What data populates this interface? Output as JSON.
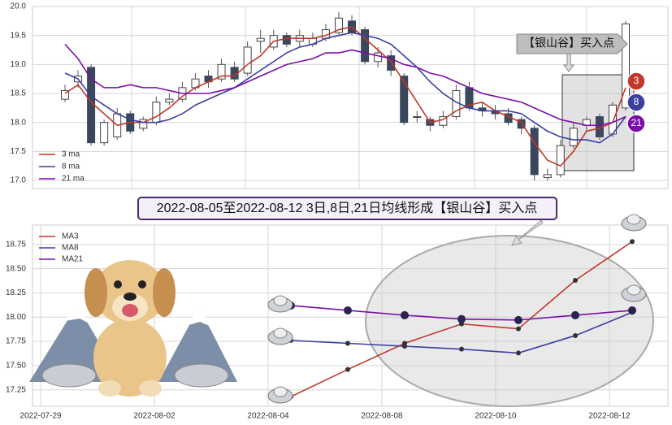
{
  "chart_data": [
    {
      "type": "candlestick",
      "open": [
        18.4,
        18.7,
        18.95,
        17.65,
        17.75,
        18.15,
        17.9,
        18.0,
        18.35,
        18.4,
        18.6,
        18.8,
        18.75,
        18.95,
        18.85,
        19.4,
        19.3,
        19.5,
        19.4,
        19.35,
        19.45,
        19.55,
        19.75,
        19.6,
        19.05,
        19.15,
        18.8,
        18.1,
        18.05,
        17.95,
        18.1,
        18.6,
        18.25,
        18.2,
        18.15,
        18.05,
        17.9,
        17.05,
        17.1,
        17.6,
        17.95,
        18.1,
        17.8,
        18.25
      ],
      "high": [
        18.65,
        18.9,
        19.0,
        18.05,
        18.25,
        18.2,
        18.1,
        18.45,
        18.5,
        18.7,
        18.85,
        18.9,
        19.1,
        19.05,
        19.4,
        19.6,
        19.6,
        19.55,
        19.6,
        19.55,
        19.7,
        19.9,
        19.85,
        19.65,
        19.3,
        19.25,
        18.85,
        18.2,
        18.1,
        18.2,
        18.65,
        18.7,
        18.35,
        18.3,
        18.25,
        18.1,
        17.95,
        17.2,
        17.7,
        18.0,
        18.1,
        18.15,
        18.35,
        19.75
      ],
      "low": [
        18.35,
        18.6,
        17.6,
        17.6,
        17.7,
        17.8,
        17.85,
        17.95,
        18.3,
        18.35,
        18.55,
        18.6,
        18.7,
        18.7,
        18.8,
        19.2,
        19.25,
        19.3,
        19.3,
        19.3,
        19.4,
        19.5,
        19.5,
        19.0,
        18.95,
        18.8,
        17.95,
        18.0,
        17.85,
        17.9,
        18.05,
        18.2,
        18.1,
        18.05,
        17.95,
        17.8,
        17.0,
        17.0,
        17.05,
        17.55,
        17.85,
        17.7,
        17.75,
        18.2
      ],
      "close": [
        18.55,
        18.8,
        17.65,
        18.0,
        18.15,
        17.85,
        18.05,
        18.35,
        18.4,
        18.6,
        18.75,
        18.7,
        19.0,
        18.75,
        19.3,
        19.45,
        19.5,
        19.35,
        19.5,
        19.45,
        19.6,
        19.8,
        19.55,
        19.05,
        19.2,
        18.9,
        18.0,
        18.1,
        17.95,
        18.1,
        18.55,
        18.25,
        18.2,
        18.15,
        18.0,
        17.9,
        17.1,
        17.1,
        17.6,
        17.9,
        18.05,
        17.75,
        18.3,
        19.7
      ],
      "up_color": "#ffffff",
      "down_color": "#3a475c",
      "series": [
        {
          "name": "3 ma",
          "color": "#c0392b",
          "values": [
            18.5,
            18.65,
            18.35,
            18.15,
            17.95,
            18.0,
            18.0,
            18.1,
            18.25,
            18.45,
            18.6,
            18.7,
            18.8,
            18.8,
            19.0,
            19.15,
            19.4,
            19.45,
            19.45,
            19.45,
            19.5,
            19.6,
            19.65,
            19.45,
            19.25,
            19.05,
            18.7,
            18.35,
            18.0,
            18.05,
            18.2,
            18.3,
            18.35,
            18.2,
            18.1,
            18.0,
            17.65,
            17.35,
            17.25,
            17.5,
            17.85,
            17.9,
            18.0,
            18.6
          ]
        },
        {
          "name": "8 ma",
          "color": "#3b3fa0",
          "values": [
            18.85,
            18.75,
            18.45,
            18.3,
            18.15,
            18.05,
            18.0,
            18.0,
            18.05,
            18.15,
            18.3,
            18.4,
            18.5,
            18.6,
            18.75,
            18.9,
            19.05,
            19.2,
            19.3,
            19.35,
            19.45,
            19.5,
            19.55,
            19.5,
            19.45,
            19.35,
            19.15,
            18.95,
            18.7,
            18.5,
            18.35,
            18.25,
            18.2,
            18.2,
            18.2,
            18.15,
            18.0,
            17.85,
            17.75,
            17.7,
            17.7,
            17.65,
            17.8,
            18.1
          ]
        },
        {
          "name": "21 ma",
          "color": "#7a0ea8",
          "values": [
            19.35,
            19.1,
            18.75,
            18.6,
            18.6,
            18.65,
            18.6,
            18.6,
            18.55,
            18.5,
            18.5,
            18.5,
            18.55,
            18.6,
            18.7,
            18.8,
            18.9,
            19.0,
            19.05,
            19.1,
            19.2,
            19.2,
            19.25,
            19.2,
            19.15,
            19.1,
            19.0,
            18.95,
            18.85,
            18.8,
            18.7,
            18.6,
            18.5,
            18.45,
            18.4,
            18.35,
            18.25,
            18.15,
            18.05,
            18.0,
            17.95,
            17.95,
            18.0,
            18.1
          ]
        }
      ],
      "ylim": [
        16.86,
        20.0
      ],
      "yticks": [
        {
          "value": 17,
          "label": "17.0"
        },
        17.5,
        {
          "value": 18,
          "label": "18.0"
        },
        18.5,
        {
          "value": 19,
          "label": "19.0"
        },
        19.5,
        {
          "value": 20,
          "label": "20.0"
        }
      ],
      "grid": true,
      "annotation": "【银山谷】买入点",
      "badges": [
        "3",
        "8",
        "21"
      ]
    },
    {
      "type": "line",
      "title": "2022-08-05至2022-08-12 3日,8日,21日均线形成【银山谷】买入点",
      "x": [
        "2022-08-04",
        "2022-08-05",
        "2022-08-08",
        "2022-08-09",
        "2022-08-10",
        "2022-08-11",
        "2022-08-12"
      ],
      "series": [
        {
          "name": "MA3",
          "color": "#c0392b",
          "values": [
            17.18,
            17.46,
            17.73,
            17.93,
            17.88,
            18.38,
            18.78
          ]
        },
        {
          "name": "MA8",
          "color": "#3b3fa0",
          "values": [
            17.76,
            17.73,
            17.7,
            17.67,
            17.63,
            17.81,
            18.05
          ]
        },
        {
          "name": "MA21",
          "color": "#7a0ea8",
          "values": [
            18.12,
            18.07,
            18.02,
            17.98,
            17.97,
            18.02,
            18.07
          ]
        }
      ],
      "ylim": [
        17.08,
        18.95
      ],
      "yticks": [
        17.25,
        {
          "value": 17.5,
          "label": "17.50"
        },
        17.75,
        {
          "value": 18,
          "label": "18.00"
        },
        18.25,
        {
          "value": 18.5,
          "label": "18.50"
        },
        18.75
      ],
      "xticks": [
        "2022-07-29",
        "2022-08-02",
        "2022-08-04",
        "2022-08-08",
        "2022-08-10",
        "2022-08-12"
      ],
      "grid": true
    }
  ]
}
